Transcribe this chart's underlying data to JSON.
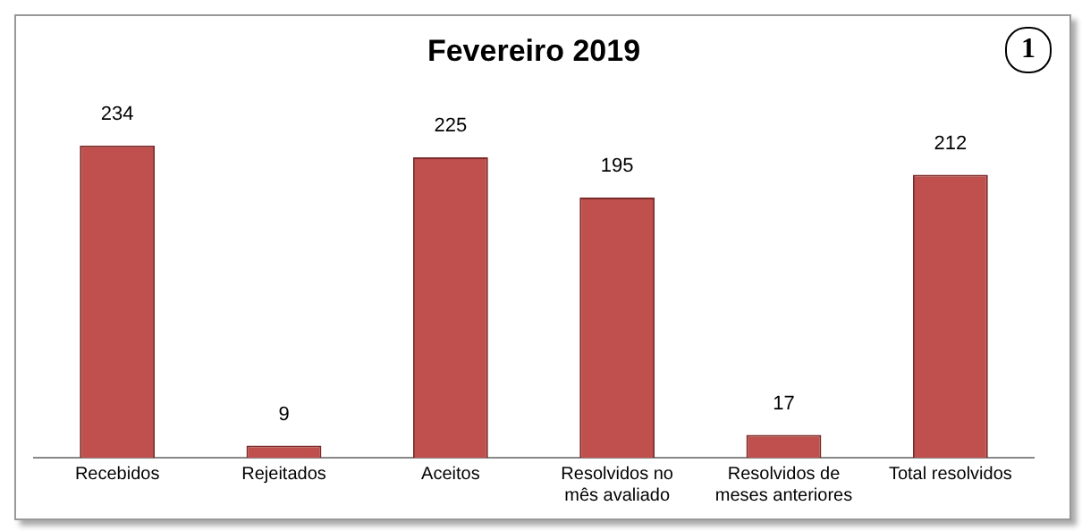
{
  "chart_data": {
    "type": "bar",
    "title": "Fevereiro 2019",
    "categories": [
      "Recebidos",
      "Rejeitados",
      "Aceitos",
      "Resolvidos no mês avaliado",
      "Resolvidos de meses anteriores",
      "Total resolvidos"
    ],
    "values": [
      234,
      9,
      225,
      195,
      17,
      212
    ],
    "color": "#c0504d",
    "data_labels": true,
    "grid": false,
    "legend": false,
    "annotations": [
      "1"
    ]
  }
}
